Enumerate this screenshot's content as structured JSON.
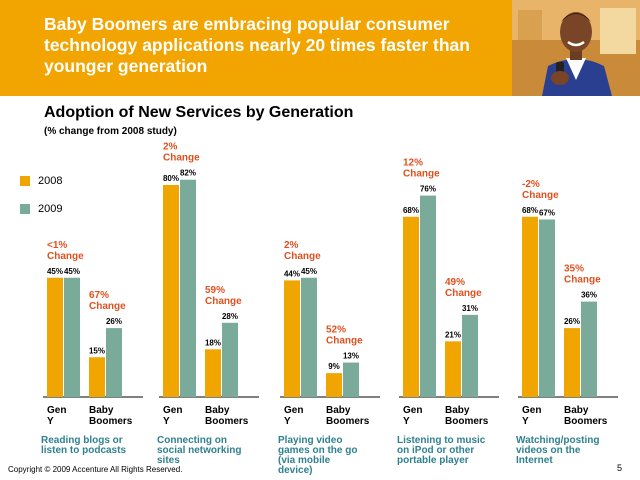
{
  "slide": {
    "headline": "Baby Boomers are embracing popular consumer technology applications nearly 20 times faster than younger generation",
    "footer": "Copyright © 2009 Accenture All Rights Reserved.",
    "page_number": "5"
  },
  "colors": {
    "banner": "#f2a400",
    "series_2008": "#f0a500",
    "series_2009": "#7aab9a",
    "change_text": "#e0501e",
    "category_text": "#2f8090"
  },
  "chart_data": {
    "type": "bar",
    "title": "Adoption of New Services by Generation",
    "subtitle": "(% change from 2008 study)",
    "series": [
      {
        "name": "2008",
        "color": "#f0a500"
      },
      {
        "name": "2009",
        "color": "#7aab9a"
      }
    ],
    "generations": [
      "Gen Y",
      "Baby Boomers"
    ],
    "groups": [
      {
        "category": "Reading blogs or listen to podcasts",
        "bars": [
          {
            "generation": "Gen Y",
            "v2008": 45,
            "v2009": 45,
            "labels": [
              "45%",
              "45%"
            ],
            "change": "<1% Change"
          },
          {
            "generation": "Baby Boomers",
            "v2008": 15,
            "v2009": 26,
            "labels": [
              "15%",
              "26%"
            ],
            "change": "67% Change"
          }
        ]
      },
      {
        "category": "Connecting on social networking sites",
        "bars": [
          {
            "generation": "Gen Y",
            "v2008": 80,
            "v2009": 82,
            "labels": [
              "80%",
              "82%"
            ],
            "change": "2% Change"
          },
          {
            "generation": "Baby Boomers",
            "v2008": 18,
            "v2009": 28,
            "labels": [
              "18%",
              "28%"
            ],
            "change": "59% Change"
          }
        ]
      },
      {
        "category": "Playing video games on the go (via mobile device)",
        "bars": [
          {
            "generation": "Gen Y",
            "v2008": 44,
            "v2009": 45,
            "labels": [
              "44%",
              "45%"
            ],
            "change": "2% Change"
          },
          {
            "generation": "Baby Boomers",
            "v2008": 9,
            "v2009": 13,
            "labels": [
              "9%",
              "13%"
            ],
            "change": "52% Change"
          }
        ]
      },
      {
        "category": "Listening to music on iPod or other portable player",
        "bars": [
          {
            "generation": "Gen Y",
            "v2008": 68,
            "v2009": 76,
            "labels": [
              "68%",
              "76%"
            ],
            "change": "12% Change"
          },
          {
            "generation": "Baby Boomers",
            "v2008": 21,
            "v2009": 31,
            "labels": [
              "21%",
              "31%"
            ],
            "change": "49% Change"
          }
        ]
      },
      {
        "category": "Watching/posting videos on the Internet",
        "bars": [
          {
            "generation": "Gen Y",
            "v2008": 68,
            "v2009": 67,
            "labels": [
              "68%",
              "67%"
            ],
            "change": "-2% Change"
          },
          {
            "generation": "Baby Boomers",
            "v2008": 26,
            "v2009": 36,
            "labels": [
              "26%",
              "36%"
            ],
            "change": "35% Change"
          }
        ]
      }
    ]
  }
}
